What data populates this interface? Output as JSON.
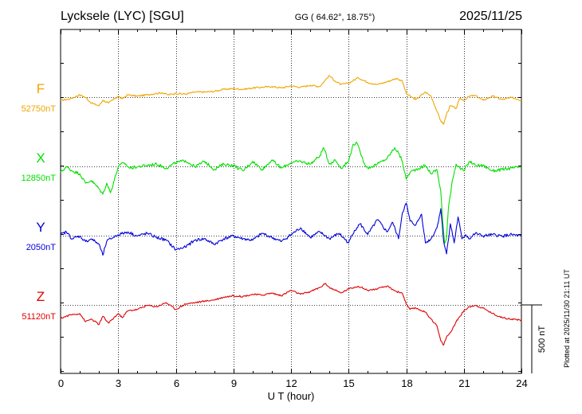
{
  "header": {
    "station": "Lycksele (LYC)  [SGU]",
    "coords": "GG ( 64.62°,  18.75°)",
    "date": "2025/11/25"
  },
  "footer": {
    "plotted": "Plotted at 2025/11/30 21:11 UT"
  },
  "colors": {
    "F": "#f0a500",
    "X": "#00e000",
    "Y": "#0000dd",
    "Z": "#e00000",
    "axis": "#000000"
  },
  "chart_data": {
    "type": "line",
    "xlabel": "U T (hour)",
    "xlim": [
      0,
      24
    ],
    "xticks": [
      0,
      3,
      6,
      9,
      12,
      15,
      18,
      21,
      24
    ],
    "x_tick_labels": [
      "0",
      "3",
      "6",
      "9",
      "12",
      "15",
      "18",
      "21",
      "24"
    ],
    "scale_bar": {
      "label": "500 nT",
      "value_nT": 500
    },
    "series": [
      {
        "name": "F",
        "baseline_label": "52750nT",
        "baseline_nT": 52750,
        "x": [
          0,
          0.5,
          1.0,
          1.3,
          1.6,
          2.0,
          2.2,
          2.5,
          3.0,
          3.2,
          3.5,
          4.0,
          4.5,
          5.0,
          5.3,
          5.6,
          6.0,
          6.5,
          7.0,
          7.5,
          8.0,
          8.5,
          9.0,
          9.5,
          10.0,
          10.5,
          11.0,
          11.5,
          12.0,
          12.5,
          13.0,
          13.5,
          13.8,
          14.0,
          14.3,
          14.6,
          15.0,
          15.5,
          16.0,
          16.5,
          17.0,
          17.5,
          17.8,
          18.0,
          18.2,
          18.5,
          19.0,
          19.3,
          19.6,
          19.8,
          19.95,
          20.1,
          20.3,
          20.6,
          20.8,
          21.0,
          21.3,
          21.6,
          22.0,
          22.5,
          23.0,
          23.5,
          24.0
        ],
        "y": [
          -20,
          -10,
          20,
          0,
          -40,
          -60,
          -20,
          -40,
          10,
          -10,
          20,
          10,
          20,
          30,
          35,
          20,
          30,
          25,
          40,
          40,
          45,
          60,
          65,
          60,
          70,
          75,
          80,
          70,
          85,
          75,
          90,
          80,
          130,
          160,
          120,
          95,
          105,
          145,
          110,
          95,
          115,
          140,
          120,
          30,
          10,
          -15,
          40,
          10,
          -100,
          -170,
          -195,
          -120,
          -60,
          -80,
          -5,
          -20,
          10,
          15,
          -20,
          10,
          -15,
          0,
          -20
        ]
      },
      {
        "name": "X",
        "baseline_label": "12850nT",
        "baseline_nT": 12850,
        "x": [
          0,
          0.3,
          0.6,
          1.0,
          1.3,
          1.6,
          2.0,
          2.2,
          2.4,
          2.6,
          3.0,
          3.3,
          3.6,
          4.0,
          4.5,
          5.0,
          5.5,
          6.0,
          6.5,
          7.0,
          7.5,
          8.0,
          8.5,
          9.0,
          9.5,
          10.0,
          10.5,
          11.0,
          11.5,
          12.0,
          12.5,
          13.0,
          13.5,
          13.7,
          14.0,
          14.3,
          14.6,
          15.0,
          15.2,
          15.4,
          15.6,
          15.8,
          16.0,
          16.5,
          17.0,
          17.4,
          17.6,
          17.8,
          18.0,
          18.2,
          18.5,
          19.0,
          19.3,
          19.6,
          19.8,
          19.9,
          20.0,
          20.1,
          20.2,
          20.4,
          20.6,
          20.8,
          21.0,
          21.3,
          21.6,
          22.0,
          22.5,
          23.0,
          23.5,
          24.0
        ],
        "y": [
          -40,
          0,
          -30,
          -50,
          -120,
          -100,
          -160,
          -200,
          -120,
          -190,
          0,
          30,
          -10,
          0,
          10,
          20,
          -10,
          30,
          45,
          0,
          40,
          -20,
          20,
          10,
          -30,
          40,
          -20,
          50,
          -10,
          30,
          40,
          20,
          80,
          140,
          20,
          50,
          -10,
          40,
          150,
          180,
          110,
          30,
          -10,
          20,
          60,
          140,
          100,
          40,
          -90,
          -40,
          -20,
          10,
          -50,
          -20,
          -180,
          -400,
          -560,
          -520,
          -300,
          -100,
          20,
          -10,
          -30,
          40,
          10,
          10,
          -30,
          -20,
          -10,
          0
        ]
      },
      {
        "name": "Y",
        "baseline_label": "2050nT",
        "baseline_nT": 2050,
        "x": [
          0,
          0.3,
          0.6,
          1.0,
          1.3,
          1.6,
          2.0,
          2.2,
          2.4,
          2.6,
          3.0,
          3.5,
          4.0,
          4.5,
          5.0,
          5.5,
          6.0,
          6.5,
          7.0,
          7.5,
          8.0,
          8.5,
          9.0,
          9.5,
          10.0,
          10.5,
          11.0,
          11.5,
          12.0,
          12.5,
          13.0,
          13.5,
          14.0,
          14.5,
          15.0,
          15.3,
          15.6,
          16.0,
          16.5,
          17.0,
          17.3,
          17.6,
          17.8,
          18.0,
          18.2,
          18.5,
          18.8,
          19.0,
          19.3,
          19.6,
          19.8,
          19.95,
          20.1,
          20.3,
          20.5,
          20.7,
          20.9,
          21.1,
          21.3,
          21.6,
          22.0,
          22.5,
          23.0,
          23.5,
          24.0
        ],
        "y": [
          10,
          30,
          -20,
          0,
          -40,
          -20,
          -60,
          -140,
          -40,
          -20,
          10,
          30,
          0,
          20,
          -10,
          -30,
          -100,
          -80,
          -30,
          -20,
          -60,
          -20,
          0,
          -20,
          -30,
          20,
          -10,
          -40,
          10,
          60,
          -10,
          30,
          -20,
          20,
          -50,
          40,
          90,
          10,
          120,
          30,
          100,
          -20,
          170,
          240,
          110,
          80,
          160,
          -50,
          -20,
          60,
          200,
          -40,
          -130,
          90,
          -50,
          140,
          -20,
          10,
          -20,
          20,
          0,
          10,
          0,
          10,
          0
        ]
      },
      {
        "name": "Z",
        "baseline_label": "51120nT",
        "baseline_nT": 51120,
        "x": [
          0,
          0.5,
          1.0,
          1.3,
          1.6,
          2.0,
          2.2,
          2.5,
          3.0,
          3.2,
          3.5,
          4.0,
          4.5,
          5.0,
          5.5,
          6.0,
          6.5,
          7.0,
          7.5,
          8.0,
          8.5,
          9.0,
          9.5,
          10.0,
          10.5,
          11.0,
          11.5,
          12.0,
          12.5,
          13.0,
          13.5,
          13.8,
          14.0,
          14.3,
          14.6,
          15.0,
          15.5,
          16.0,
          16.5,
          17.0,
          17.5,
          17.8,
          18.0,
          18.2,
          18.5,
          19.0,
          19.3,
          19.6,
          19.8,
          19.95,
          20.1,
          20.3,
          20.6,
          20.8,
          21.0,
          21.3,
          21.6,
          22.0,
          22.5,
          23.0,
          23.5,
          24.0
        ],
        "y": [
          -95,
          -70,
          -60,
          -120,
          -100,
          -140,
          -80,
          -130,
          -60,
          -90,
          -40,
          -30,
          0,
          -10,
          20,
          -30,
          10,
          20,
          30,
          40,
          60,
          70,
          65,
          80,
          75,
          90,
          70,
          110,
          80,
          100,
          130,
          160,
          130,
          110,
          90,
          120,
          140,
          110,
          120,
          140,
          100,
          90,
          10,
          -30,
          -20,
          -50,
          -100,
          -150,
          -260,
          -290,
          -230,
          -200,
          -120,
          -80,
          -40,
          -10,
          0,
          -20,
          -60,
          -90,
          -100,
          -110
        ]
      }
    ]
  }
}
